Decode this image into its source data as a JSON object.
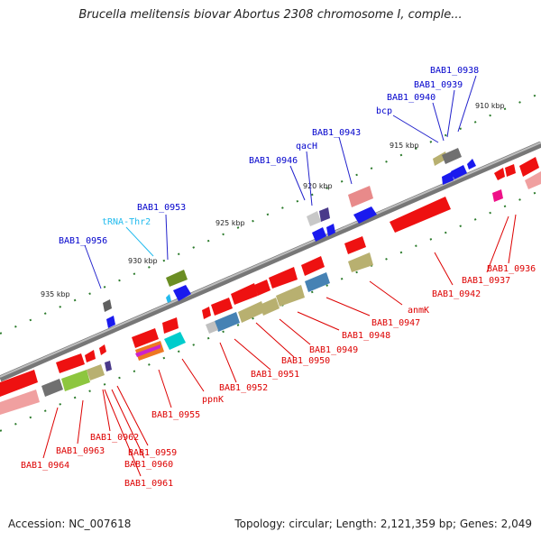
{
  "title": "Brucella melitensis biovar Abortus 2308 chromosome I, comple...",
  "footer": {
    "accession": "Accession: NC_007618",
    "summary": "Topology: circular; Length: 2,121,359 bp; Genes: 2,049"
  },
  "colors": {
    "backbone": "#888888",
    "forward_label": "#0000cc",
    "reverse_label": "#dd0000",
    "trna_label": "#22bbee",
    "tick": "#228b22"
  },
  "ticks": [
    {
      "label": "910 kbp"
    },
    {
      "label": "915 kbp"
    },
    {
      "label": "920 kbp"
    },
    {
      "label": "925 kbp"
    },
    {
      "label": "930 kbp"
    },
    {
      "label": "935 kbp"
    }
  ],
  "forward_labels": [
    {
      "text": "BAB1_0938"
    },
    {
      "text": "BAB1_0939"
    },
    {
      "text": "BAB1_0940"
    },
    {
      "text": "bcp"
    },
    {
      "text": "BAB1_0943"
    },
    {
      "text": "qacH"
    },
    {
      "text": "BAB1_0946"
    },
    {
      "text": "BAB1_0953"
    },
    {
      "text": "tRNA-Thr2"
    },
    {
      "text": "BAB1_0956"
    }
  ],
  "reverse_labels": [
    {
      "text": "BAB1_0936"
    },
    {
      "text": "BAB1_0937"
    },
    {
      "text": "BAB1_0942"
    },
    {
      "text": "anmK"
    },
    {
      "text": "BAB1_0947"
    },
    {
      "text": "BAB1_0948"
    },
    {
      "text": "BAB1_0949"
    },
    {
      "text": "BAB1_0950"
    },
    {
      "text": "BAB1_0951"
    },
    {
      "text": "BAB1_0952"
    },
    {
      "text": "ppnK"
    },
    {
      "text": "BAB1_0955"
    },
    {
      "text": "BAB1_0959"
    },
    {
      "text": "BAB1_0960"
    },
    {
      "text": "BAB1_0961"
    },
    {
      "text": "BAB1_0962"
    },
    {
      "text": "BAB1_0963"
    },
    {
      "text": "BAB1_0964"
    }
  ]
}
